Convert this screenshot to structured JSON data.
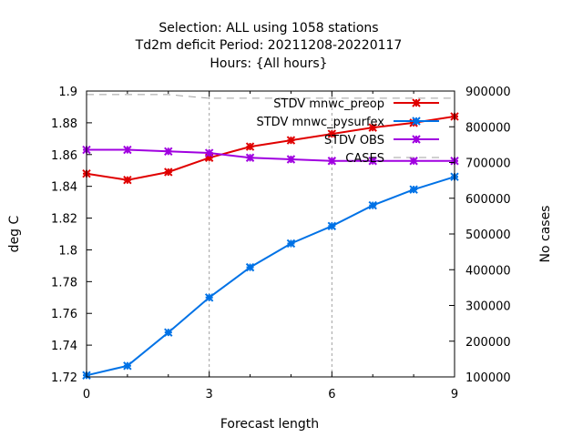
{
  "chart_data": {
    "type": "line",
    "title": [
      "Selection: ALL using  1058 stations",
      "Td2m deficit   Period: 20211208-20220117",
      "Hours: {All hours}"
    ],
    "xlabel": "Forecast length",
    "ylabel": "deg C",
    "y2label": "No cases",
    "xlim": [
      0,
      9
    ],
    "ylim": [
      1.72,
      1.9
    ],
    "y2lim": [
      100000,
      900000
    ],
    "xticks": [
      "0",
      "3",
      "6",
      "9"
    ],
    "yticks": [
      "1.72",
      "1.74",
      "1.76",
      "1.78",
      "1.8",
      "1.82",
      "1.84",
      "1.86",
      "1.88",
      "1.9"
    ],
    "y2ticks": [
      "100000",
      "200000",
      "300000",
      "400000",
      "500000",
      "600000",
      "700000",
      "800000",
      "900000"
    ],
    "grid": "vertical dashed at x ticks",
    "legend_position": "top-right",
    "x": [
      0,
      1,
      2,
      3,
      4,
      5,
      6,
      7,
      8,
      9
    ],
    "series": [
      {
        "name": "STDV mnwc_preop",
        "color": "#e00000",
        "axis": "y",
        "values": [
          1.848,
          1.844,
          1.849,
          1.858,
          1.865,
          1.869,
          1.873,
          1.877,
          1.88,
          1.884
        ]
      },
      {
        "name": "STDV mnwc_pysurfex",
        "color": "#0072e6",
        "axis": "y",
        "values": [
          1.721,
          1.727,
          1.748,
          1.77,
          1.789,
          1.804,
          1.815,
          1.828,
          1.838,
          1.846
        ]
      },
      {
        "name": "STDV OBS",
        "color": "#a000e0",
        "axis": "y",
        "values": [
          1.863,
          1.863,
          1.862,
          1.861,
          1.858,
          1.857,
          1.856,
          1.856,
          1.856,
          1.856
        ]
      },
      {
        "name": "CASES",
        "color": "#a0a0a0",
        "axis": "y2",
        "values": [
          890000,
          890000,
          890000,
          880000,
          880000,
          880000,
          880000,
          880000,
          880000,
          880000
        ]
      }
    ]
  }
}
